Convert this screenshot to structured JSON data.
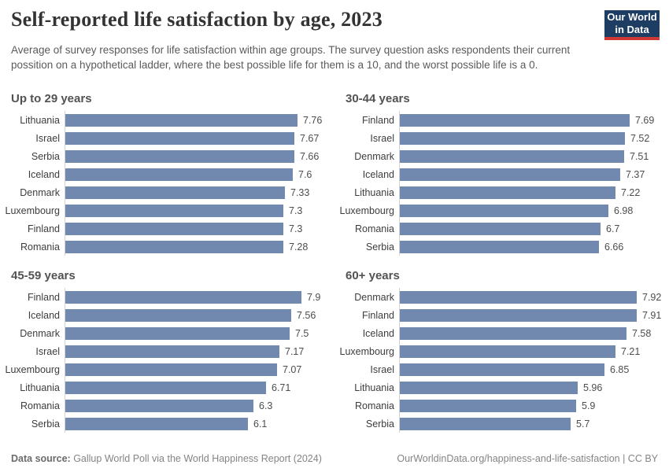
{
  "header": {
    "title": "Self-reported life satisfaction by age, 2023",
    "subtitle": "Average of survey responses for life satisfaction within age groups. The survey question asks respondents their current possition on a hypothetical ladder, where the best possible life for them is a 10, and the worst possible life is a 0.",
    "logo": {
      "line1": "Our World",
      "line2": "in Data"
    }
  },
  "footer": {
    "datasource_label": "Data source:",
    "datasource_text": " Gallup World Poll via the World Happiness Report (2024)",
    "right_text": "OurWorldinData.org/happiness-and-life-satisfaction | CC BY"
  },
  "colors": {
    "bar": "#7189ae",
    "axis_line": "#d4d4d4",
    "logo_navy": "#1d3d63",
    "logo_red": "#cf3935"
  },
  "chart_data": [
    {
      "type": "bar",
      "title": "Up to 29 years",
      "orientation": "horizontal",
      "categories": [
        "Lithuania",
        "Israel",
        "Serbia",
        "Iceland",
        "Denmark",
        "Luxembourg",
        "Finland",
        "Romania"
      ],
      "values": [
        7.76,
        7.67,
        7.66,
        7.6,
        7.33,
        7.3,
        7.3,
        7.28
      ],
      "xlim": [
        0,
        8.4
      ],
      "grid": false,
      "value_labels": true
    },
    {
      "type": "bar",
      "title": "30-44 years",
      "orientation": "horizontal",
      "categories": [
        "Finland",
        "Israel",
        "Denmark",
        "Iceland",
        "Lithuania",
        "Luxembourg",
        "Romania",
        "Serbia"
      ],
      "values": [
        7.69,
        7.52,
        7.51,
        7.37,
        7.22,
        6.98,
        6.7,
        6.66
      ],
      "xlim": [
        0,
        8.4
      ],
      "grid": false,
      "value_labels": true
    },
    {
      "type": "bar",
      "title": "45-59 years",
      "orientation": "horizontal",
      "categories": [
        "Finland",
        "Iceland",
        "Denmark",
        "Israel",
        "Luxembourg",
        "Lithuania",
        "Romania",
        "Serbia"
      ],
      "values": [
        7.9,
        7.56,
        7.5,
        7.17,
        7.07,
        6.71,
        6.3,
        6.1
      ],
      "xlim": [
        0,
        8.4
      ],
      "grid": false,
      "value_labels": true
    },
    {
      "type": "bar",
      "title": "60+ years",
      "orientation": "horizontal",
      "categories": [
        "Denmark",
        "Finland",
        "Iceland",
        "Luxembourg",
        "Israel",
        "Lithuania",
        "Romania",
        "Serbia"
      ],
      "values": [
        7.92,
        7.91,
        7.58,
        7.21,
        6.85,
        5.96,
        5.9,
        5.7
      ],
      "xlim": [
        0,
        8.4
      ],
      "grid": false,
      "value_labels": true
    }
  ]
}
